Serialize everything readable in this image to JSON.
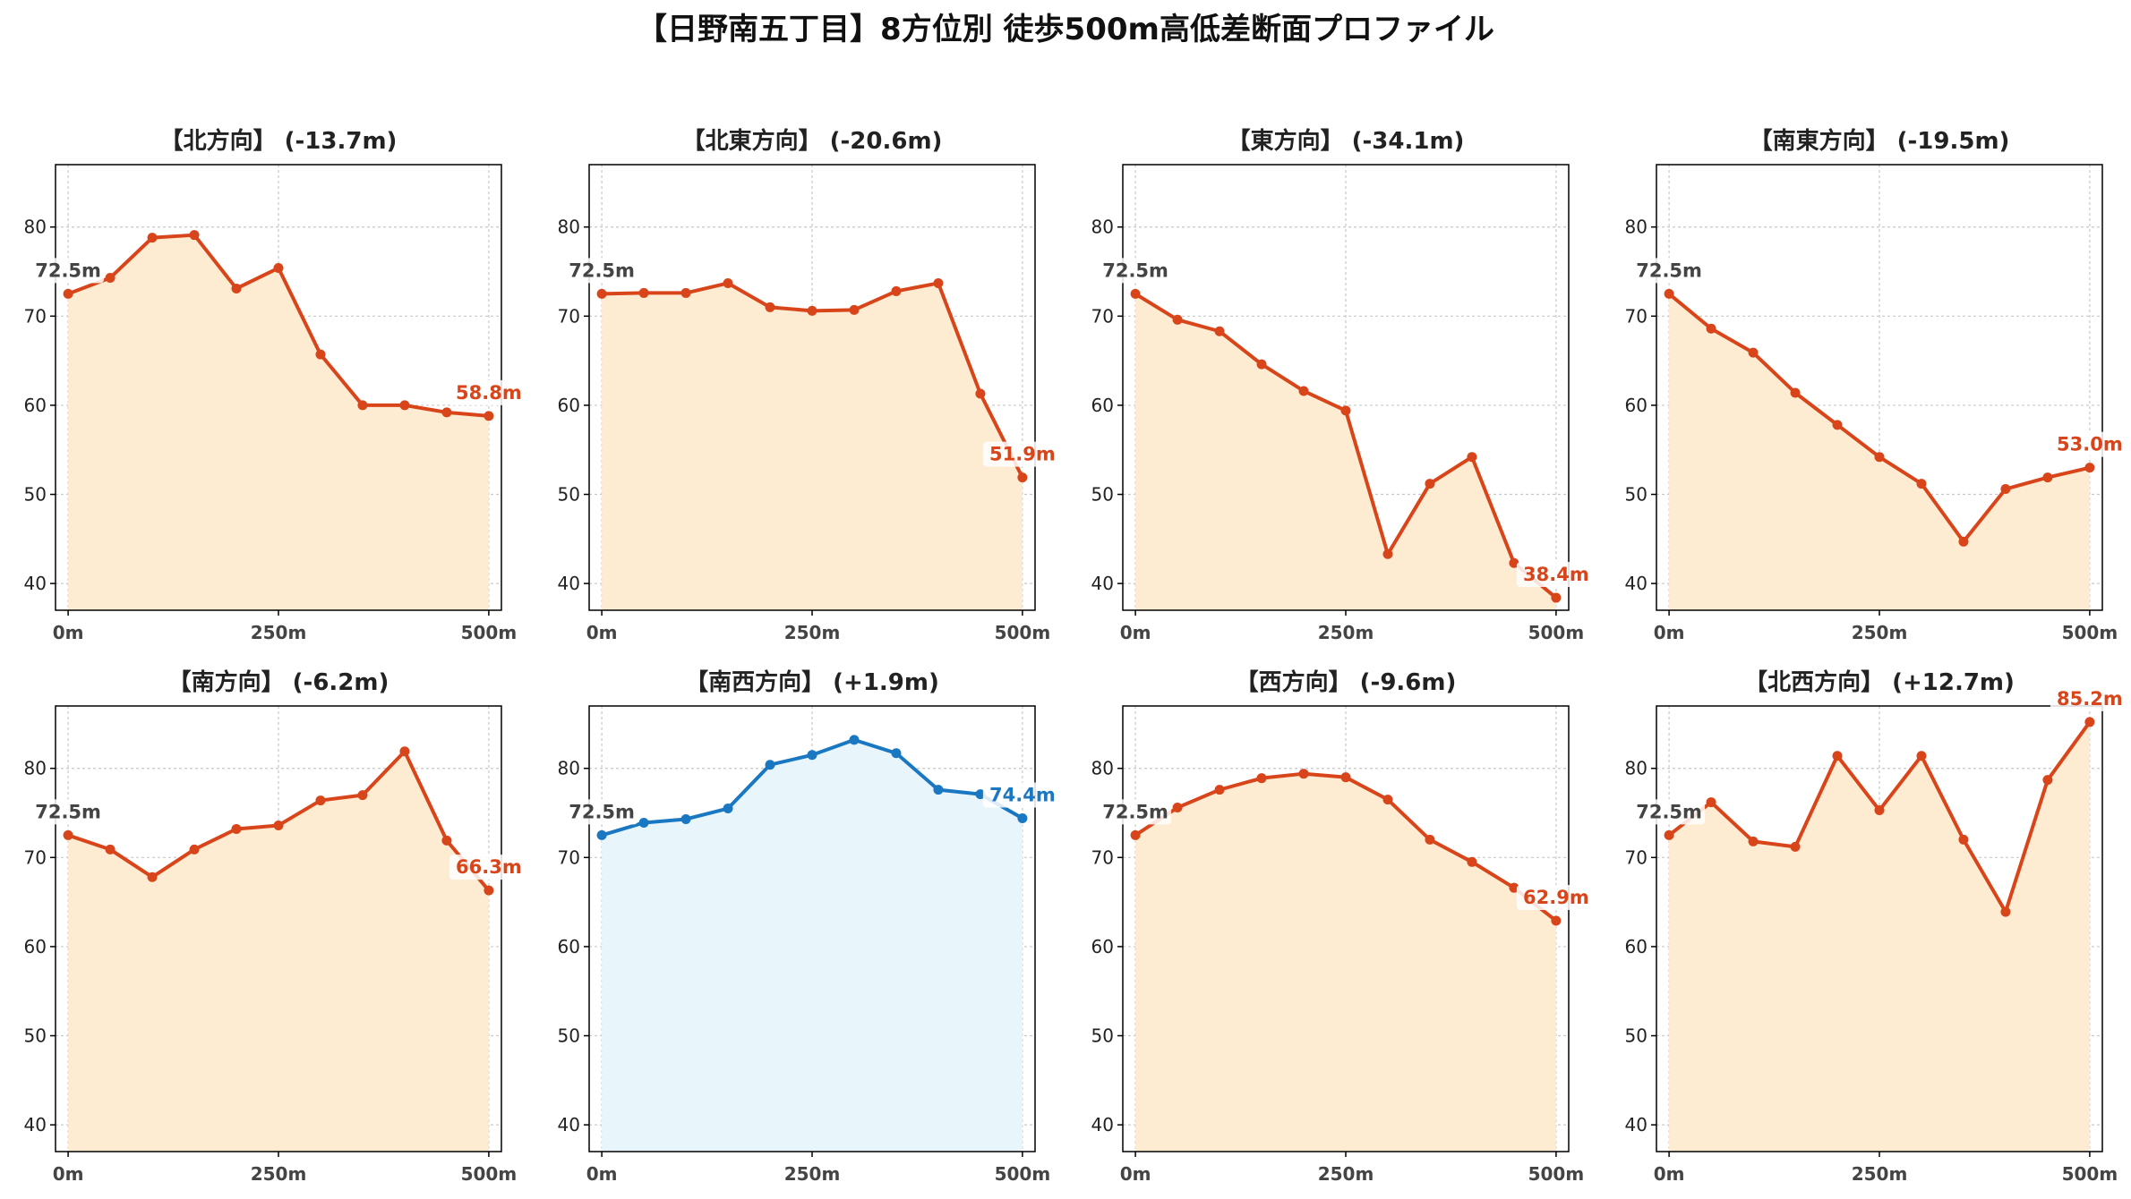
{
  "title": "【日野南五丁目】8方位別 徒歩500m高低差断面プロファイル",
  "colors": {
    "down_line": "#d9451a",
    "down_fill": "#fdebd2",
    "up_line": "#1a78c2",
    "up_fill": "#e8f5fb",
    "start_label": "#444444",
    "grid": "#c8c8c8"
  },
  "chart_data": [
    {
      "type": "area",
      "title": "【北方向】 (-13.7m)",
      "x": [
        0,
        50,
        100,
        150,
        200,
        250,
        300,
        350,
        400,
        450,
        500
      ],
      "values": [
        72.5,
        74.3,
        78.8,
        79.1,
        73.1,
        75.4,
        65.7,
        60.0,
        60.0,
        59.2,
        58.8
      ],
      "start_label": "72.5m",
      "end_label": "58.8m",
      "highlight": false,
      "xticks": [
        "0m",
        "250m",
        "500m"
      ],
      "yticks": [
        "40",
        "50",
        "60",
        "70",
        "80"
      ],
      "xlabel": "",
      "ylabel": "",
      "ylim": [
        37,
        87
      ],
      "grid": true
    },
    {
      "type": "area",
      "title": "【北東方向】 (-20.6m)",
      "x": [
        0,
        50,
        100,
        150,
        200,
        250,
        300,
        350,
        400,
        450,
        500
      ],
      "values": [
        72.5,
        72.6,
        72.6,
        73.7,
        71.0,
        70.6,
        70.7,
        72.8,
        73.7,
        61.3,
        51.9
      ],
      "start_label": "72.5m",
      "end_label": "51.9m",
      "highlight": false,
      "xticks": [
        "0m",
        "250m",
        "500m"
      ],
      "yticks": [
        "40",
        "50",
        "60",
        "70",
        "80"
      ],
      "xlabel": "",
      "ylabel": "",
      "ylim": [
        37,
        87
      ],
      "grid": true
    },
    {
      "type": "area",
      "title": "【東方向】 (-34.1m)",
      "x": [
        0,
        50,
        100,
        150,
        200,
        250,
        300,
        350,
        400,
        450,
        500
      ],
      "values": [
        72.5,
        69.6,
        68.3,
        64.6,
        61.6,
        59.4,
        43.3,
        51.2,
        54.2,
        42.3,
        38.4
      ],
      "start_label": "72.5m",
      "end_label": "38.4m",
      "highlight": false,
      "xticks": [
        "0m",
        "250m",
        "500m"
      ],
      "yticks": [
        "40",
        "50",
        "60",
        "70",
        "80"
      ],
      "xlabel": "",
      "ylabel": "",
      "ylim": [
        37,
        87
      ],
      "grid": true
    },
    {
      "type": "area",
      "title": "【南東方向】 (-19.5m)",
      "x": [
        0,
        50,
        100,
        150,
        200,
        250,
        300,
        350,
        400,
        450,
        500
      ],
      "values": [
        72.5,
        68.6,
        65.9,
        61.4,
        57.8,
        54.2,
        51.2,
        44.7,
        50.6,
        51.9,
        53.0
      ],
      "start_label": "72.5m",
      "end_label": "53.0m",
      "highlight": false,
      "xticks": [
        "0m",
        "250m",
        "500m"
      ],
      "yticks": [
        "40",
        "50",
        "60",
        "70",
        "80"
      ],
      "xlabel": "",
      "ylabel": "",
      "ylim": [
        37,
        87
      ],
      "grid": true
    },
    {
      "type": "area",
      "title": "【南方向】 (-6.2m)",
      "x": [
        0,
        50,
        100,
        150,
        200,
        250,
        300,
        350,
        400,
        450,
        500
      ],
      "values": [
        72.5,
        70.9,
        67.8,
        70.9,
        73.2,
        73.6,
        76.4,
        77.0,
        81.9,
        71.9,
        66.3
      ],
      "start_label": "72.5m",
      "end_label": "66.3m",
      "highlight": false,
      "xticks": [
        "0m",
        "250m",
        "500m"
      ],
      "yticks": [
        "40",
        "50",
        "60",
        "70",
        "80"
      ],
      "xlabel": "",
      "ylabel": "",
      "ylim": [
        37,
        87
      ],
      "grid": true
    },
    {
      "type": "area",
      "title": "【南西方向】 (+1.9m)",
      "x": [
        0,
        50,
        100,
        150,
        200,
        250,
        300,
        350,
        400,
        450,
        500
      ],
      "values": [
        72.5,
        73.9,
        74.3,
        75.5,
        80.4,
        81.5,
        83.2,
        81.7,
        77.6,
        77.1,
        74.4
      ],
      "start_label": "72.5m",
      "end_label": "74.4m",
      "highlight": true,
      "xticks": [
        "0m",
        "250m",
        "500m"
      ],
      "yticks": [
        "40",
        "50",
        "60",
        "70",
        "80"
      ],
      "xlabel": "",
      "ylabel": "",
      "ylim": [
        37,
        87
      ],
      "grid": true
    },
    {
      "type": "area",
      "title": "【西方向】 (-9.6m)",
      "x": [
        0,
        50,
        100,
        150,
        200,
        250,
        300,
        350,
        400,
        450,
        500
      ],
      "values": [
        72.5,
        75.6,
        77.6,
        78.9,
        79.4,
        79.0,
        76.5,
        72.0,
        69.5,
        66.6,
        62.9
      ],
      "start_label": "72.5m",
      "end_label": "62.9m",
      "highlight": false,
      "xticks": [
        "0m",
        "250m",
        "500m"
      ],
      "yticks": [
        "40",
        "50",
        "60",
        "70",
        "80"
      ],
      "xlabel": "",
      "ylabel": "",
      "ylim": [
        37,
        87
      ],
      "grid": true
    },
    {
      "type": "area",
      "title": "【北西方向】 (+12.7m)",
      "x": [
        0,
        50,
        100,
        150,
        200,
        250,
        300,
        350,
        400,
        450,
        500
      ],
      "values": [
        72.5,
        76.2,
        71.8,
        71.2,
        81.4,
        75.3,
        81.4,
        72.0,
        63.9,
        78.7,
        85.2
      ],
      "start_label": "72.5m",
      "end_label": "85.2m",
      "highlight": false,
      "xticks": [
        "0m",
        "250m",
        "500m"
      ],
      "yticks": [
        "40",
        "50",
        "60",
        "70",
        "80"
      ],
      "xlabel": "",
      "ylabel": "",
      "ylim": [
        37,
        87
      ],
      "grid": true
    }
  ]
}
